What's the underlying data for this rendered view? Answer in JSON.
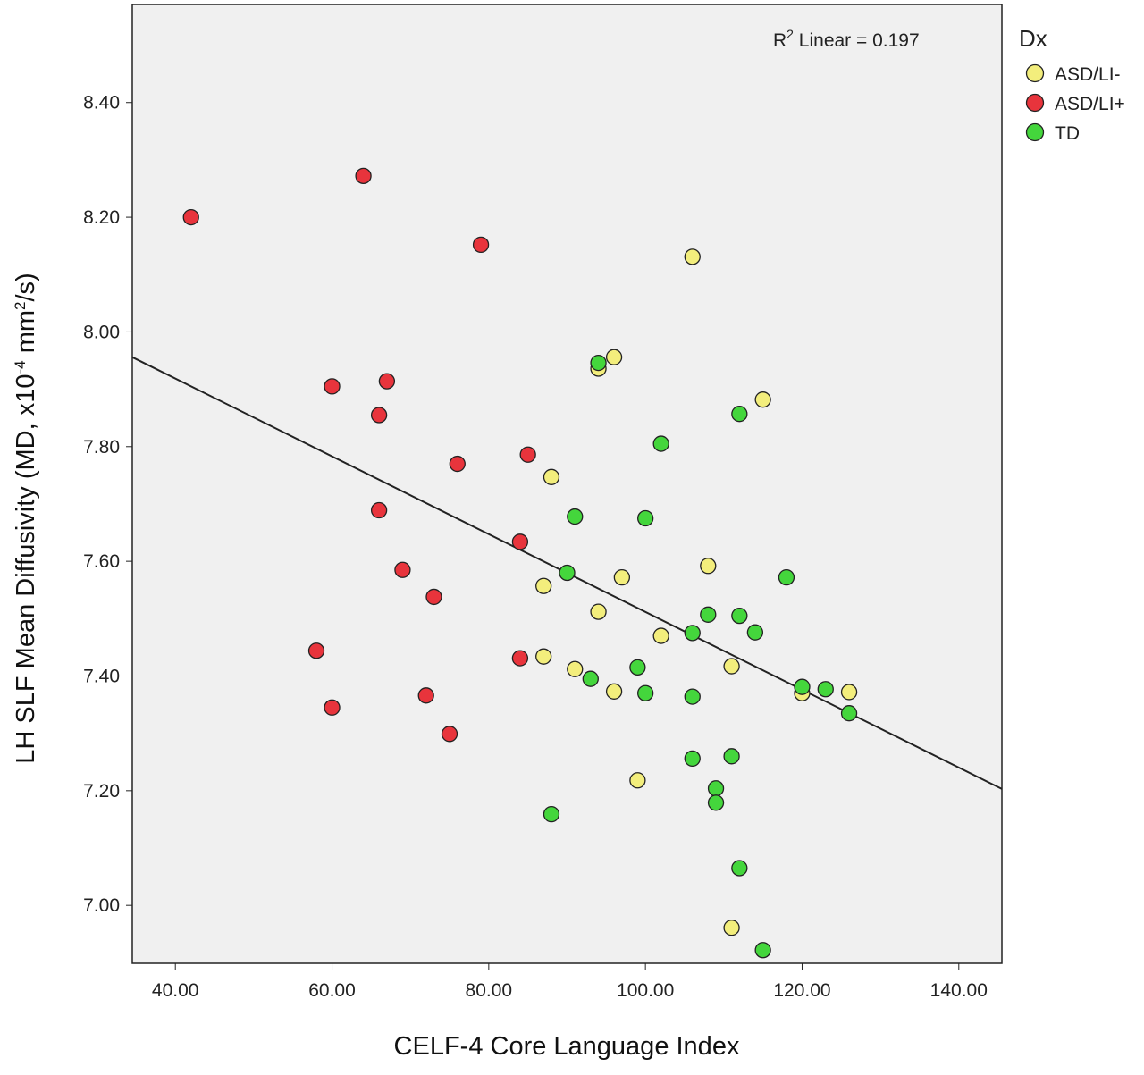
{
  "chart_data": {
    "type": "scatter",
    "title": "",
    "xlabel": "CELF-4 Core Language Index",
    "ylabel": "LH SLF Mean Diffusivity (MD, x10",
    "ylabel_sup": "-4",
    "ylabel_mid": " mm",
    "ylabel_sup2": "2",
    "ylabel_end": "/s)",
    "xlim": [
      34.5,
      145.5
    ],
    "ylim": [
      6.899,
      8.571
    ],
    "xticks": [
      40,
      60,
      80,
      100,
      120,
      140
    ],
    "xtick_labels": [
      "40.00",
      "60.00",
      "80.00",
      "100.00",
      "120.00",
      "140.00"
    ],
    "yticks": [
      7.0,
      7.2,
      7.4,
      7.6,
      7.8,
      8.0,
      8.2,
      8.4
    ],
    "ytick_labels": [
      "7.00",
      "7.20",
      "7.40",
      "7.60",
      "7.80",
      "8.00",
      "8.20",
      "8.40"
    ],
    "annotation": {
      "prefix": "R",
      "sup": "2",
      "text": " Linear = 0.197"
    },
    "fit_line": {
      "x": [
        34.5,
        145.5
      ],
      "y": [
        7.956,
        7.203
      ]
    },
    "legend": {
      "title": "Dx",
      "placement": "right"
    },
    "series": [
      {
        "name": "ASD/LI-",
        "color": "#f3ee7c",
        "points": [
          [
            106,
            8.131
          ],
          [
            96,
            7.956
          ],
          [
            94,
            7.936
          ],
          [
            115,
            7.882
          ],
          [
            88,
            7.747
          ],
          [
            108,
            7.592
          ],
          [
            97,
            7.572
          ],
          [
            87,
            7.557
          ],
          [
            94,
            7.512
          ],
          [
            102,
            7.47
          ],
          [
            111,
            7.417
          ],
          [
            87,
            7.434
          ],
          [
            91,
            7.412
          ],
          [
            96,
            7.373
          ],
          [
            120,
            7.37
          ],
          [
            126,
            7.372
          ],
          [
            99,
            7.218
          ],
          [
            111,
            6.961
          ]
        ]
      },
      {
        "name": "ASD/LI+",
        "color": "#e8343c",
        "points": [
          [
            42,
            8.2
          ],
          [
            64,
            8.272
          ],
          [
            79,
            8.152
          ],
          [
            60,
            7.905
          ],
          [
            67,
            7.914
          ],
          [
            66,
            7.855
          ],
          [
            76,
            7.77
          ],
          [
            85,
            7.786
          ],
          [
            66,
            7.689
          ],
          [
            84,
            7.634
          ],
          [
            69,
            7.585
          ],
          [
            73,
            7.538
          ],
          [
            58,
            7.444
          ],
          [
            84,
            7.431
          ],
          [
            60,
            7.345
          ],
          [
            72,
            7.366
          ],
          [
            75,
            7.299
          ]
        ]
      },
      {
        "name": "TD",
        "color": "#44d63c",
        "points": [
          [
            94,
            7.946
          ],
          [
            112,
            7.857
          ],
          [
            102,
            7.805
          ],
          [
            91,
            7.678
          ],
          [
            100,
            7.675
          ],
          [
            90,
            7.58
          ],
          [
            118,
            7.572
          ],
          [
            108,
            7.507
          ],
          [
            112,
            7.505
          ],
          [
            114,
            7.476
          ],
          [
            106,
            7.475
          ],
          [
            99,
            7.415
          ],
          [
            93,
            7.395
          ],
          [
            100,
            7.37
          ],
          [
            106,
            7.364
          ],
          [
            120,
            7.381
          ],
          [
            123,
            7.377
          ],
          [
            126,
            7.335
          ],
          [
            106,
            7.256
          ],
          [
            111,
            7.26
          ],
          [
            109,
            7.204
          ],
          [
            109,
            7.179
          ],
          [
            88,
            7.159
          ],
          [
            112,
            7.065
          ],
          [
            115,
            6.922
          ]
        ]
      }
    ]
  }
}
